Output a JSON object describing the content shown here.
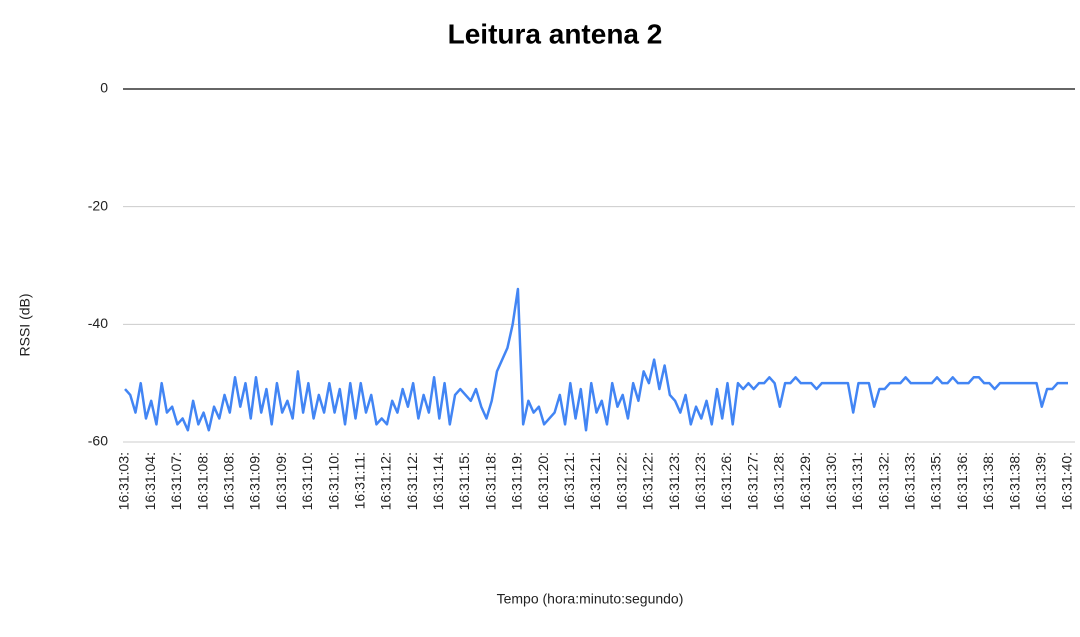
{
  "chart_data": {
    "type": "line",
    "title": "Leitura antena 2",
    "x_label": "Tempo (hora:minuto:segundo)",
    "y_label": "RSSI (dB)",
    "color": "#4285f4",
    "grid": true,
    "ylim": [
      -60,
      0
    ],
    "yticks": [
      0,
      -20,
      -40,
      -60
    ],
    "categories": [
      "16:31:03:",
      null,
      null,
      null,
      null,
      "16:31:04:",
      null,
      null,
      null,
      null,
      "16:31:07:",
      null,
      null,
      null,
      null,
      "16:31:08:",
      null,
      null,
      null,
      null,
      "16:31:08:",
      null,
      null,
      null,
      null,
      "16:31:09:",
      null,
      null,
      null,
      null,
      "16:31:09:",
      null,
      null,
      null,
      null,
      "16:31:10:",
      null,
      null,
      null,
      null,
      "16:31:10:",
      null,
      null,
      null,
      null,
      "16:31:11:",
      null,
      null,
      null,
      null,
      "16:31:12:",
      null,
      null,
      null,
      null,
      "16:31:12:",
      null,
      null,
      null,
      null,
      "16:31:14:",
      null,
      null,
      null,
      null,
      "16:31:15:",
      null,
      null,
      null,
      null,
      "16:31:18:",
      null,
      null,
      null,
      null,
      "16:31:19:",
      null,
      null,
      null,
      null,
      "16:31:20:",
      null,
      null,
      null,
      null,
      "16:31:21:",
      null,
      null,
      null,
      null,
      "16:31:21:",
      null,
      null,
      null,
      null,
      "16:31:22:",
      null,
      null,
      null,
      null,
      "16:31:22:",
      null,
      null,
      null,
      null,
      "16:31:23:",
      null,
      null,
      null,
      null,
      "16:31:23:",
      null,
      null,
      null,
      null,
      "16:31:26:",
      null,
      null,
      null,
      null,
      "16:31:27:",
      null,
      null,
      null,
      null,
      "16:31:28:",
      null,
      null,
      null,
      null,
      "16:31:29:",
      null,
      null,
      null,
      null,
      "16:31:30:",
      null,
      null,
      null,
      null,
      "16:31:31:",
      null,
      null,
      null,
      null,
      "16:31:32:",
      null,
      null,
      null,
      null,
      "16:31:33:",
      null,
      null,
      null,
      null,
      "16:31:35:",
      null,
      null,
      null,
      null,
      "16:31:36:",
      null,
      null,
      null,
      null,
      "16:31:38:",
      null,
      null,
      null,
      null,
      "16:31:38:",
      null,
      null,
      null,
      null,
      "16:31:39:",
      null,
      null,
      null,
      null,
      "16:31:40:"
    ],
    "values": [
      -51,
      -52,
      -55,
      -50,
      -56,
      -53,
      -57,
      -50,
      -55,
      -54,
      -57,
      -56,
      -58,
      -53,
      -57,
      -55,
      -58,
      -54,
      -56,
      -52,
      -55,
      -49,
      -54,
      -50,
      -56,
      -49,
      -55,
      -51,
      -57,
      -50,
      -55,
      -53,
      -56,
      -48,
      -55,
      -50,
      -56,
      -52,
      -55,
      -50,
      -55,
      -51,
      -57,
      -50,
      -56,
      -50,
      -55,
      -52,
      -57,
      -56,
      -57,
      -53,
      -55,
      -51,
      -54,
      -50,
      -56,
      -52,
      -55,
      -49,
      -56,
      -50,
      -57,
      -52,
      -51,
      -52,
      -53,
      -51,
      -54,
      -56,
      -53,
      -48,
      -46,
      -44,
      -40,
      -34,
      -57,
      -53,
      -55,
      -54,
      -57,
      -56,
      -55,
      -52,
      -57,
      -50,
      -56,
      -51,
      -58,
      -50,
      -55,
      -53,
      -57,
      -50,
      -54,
      -52,
      -56,
      -50,
      -53,
      -48,
      -50,
      -46,
      -51,
      -47,
      -52,
      -53,
      -55,
      -52,
      -57,
      -54,
      -56,
      -53,
      -57,
      -51,
      -56,
      -50,
      -57,
      -50,
      -51,
      -50,
      -51,
      -50,
      -50,
      -49,
      -50,
      -54,
      -50,
      -50,
      -49,
      -50,
      -50,
      -50,
      -51,
      -50,
      -50,
      -50,
      -50,
      -50,
      -50,
      -55,
      -50,
      -50,
      -50,
      -54,
      -51,
      -51,
      -50,
      -50,
      -50,
      -49,
      -50,
      -50,
      -50,
      -50,
      -50,
      -49,
      -50,
      -50,
      -49,
      -50,
      -50,
      -50,
      -49,
      -49,
      -50,
      -50,
      -51,
      -50,
      -50,
      -50,
      -50,
      -50,
      -50,
      -50,
      -50,
      -54,
      -51,
      -51,
      -50,
      -50,
      -50
    ]
  }
}
